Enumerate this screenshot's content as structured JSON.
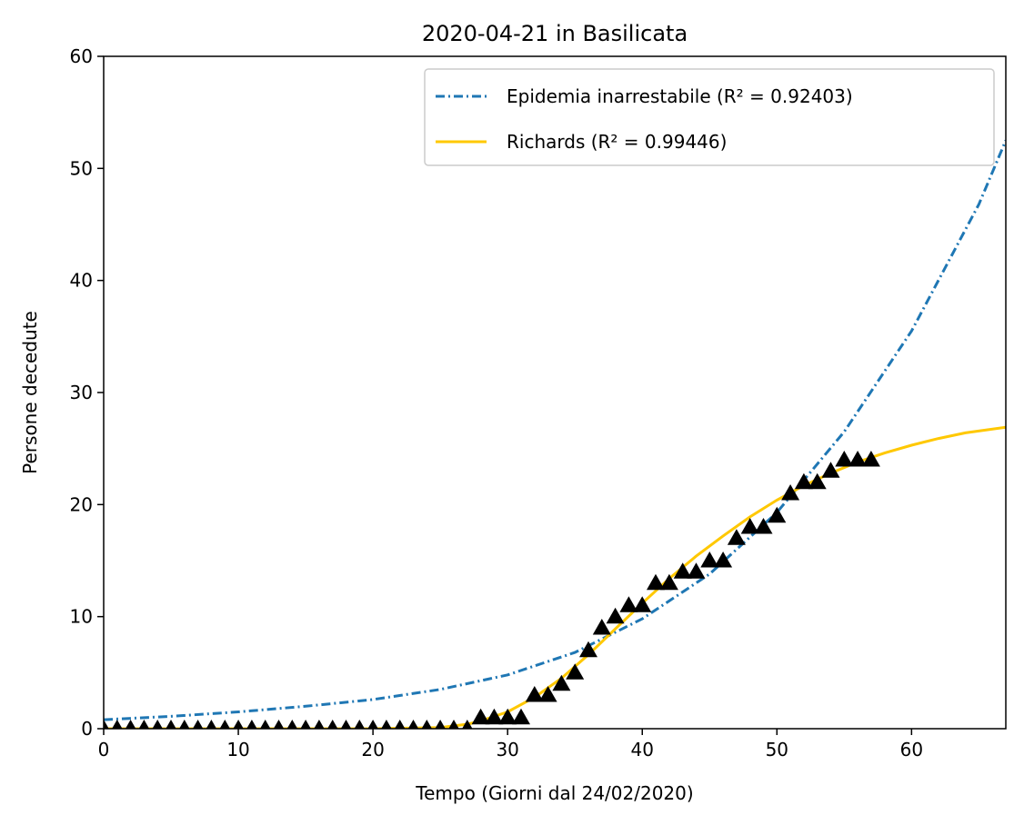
{
  "chart_data": {
    "type": "line",
    "title": "2020-04-21 in Basilicata",
    "xlabel": "Tempo (Giorni dal 24/02/2020)",
    "ylabel": "Persone decedute",
    "xlim": [
      0,
      67
    ],
    "ylim": [
      0,
      60
    ],
    "xticks": [
      0,
      10,
      20,
      30,
      40,
      50,
      60
    ],
    "yticks": [
      0,
      10,
      20,
      30,
      40,
      50,
      60
    ],
    "grid": false,
    "legend_position": "top-right",
    "observed": {
      "marker": "triangle",
      "color": "#000000",
      "x": [
        0,
        1,
        2,
        3,
        4,
        5,
        6,
        7,
        8,
        9,
        10,
        11,
        12,
        13,
        14,
        15,
        16,
        17,
        18,
        19,
        20,
        21,
        22,
        23,
        24,
        25,
        26,
        27,
        28,
        29,
        30,
        31,
        32,
        33,
        34,
        35,
        36,
        37,
        38,
        39,
        40,
        41,
        42,
        43,
        44,
        45,
        46,
        47,
        48,
        49,
        50,
        51,
        52,
        53,
        54,
        55,
        56,
        57
      ],
      "y": [
        0,
        0,
        0,
        0,
        0,
        0,
        0,
        0,
        0,
        0,
        0,
        0,
        0,
        0,
        0,
        0,
        0,
        0,
        0,
        0,
        0,
        0,
        0,
        0,
        0,
        0,
        0,
        0,
        1,
        1,
        1,
        1,
        3,
        3,
        4,
        5,
        7,
        9,
        10,
        11,
        11,
        13,
        13,
        14,
        14,
        15,
        15,
        17,
        18,
        18,
        19,
        21,
        22,
        22,
        23,
        24,
        24,
        24
      ]
    },
    "series": [
      {
        "name": "Epidemia inarrestabile",
        "r2_label": "R² = 0.92403",
        "color": "#1f77b4",
        "style": "dashdot",
        "x": [
          0,
          5,
          10,
          15,
          20,
          25,
          30,
          35,
          40,
          45,
          50,
          55,
          60,
          65,
          67
        ],
        "y": [
          0.8,
          1.1,
          1.5,
          2.0,
          2.6,
          3.5,
          4.8,
          6.8,
          9.8,
          13.8,
          19.3,
          26.5,
          35.5,
          46.8,
          52.5
        ]
      },
      {
        "name": "Richards",
        "r2_label": "R² = 0.99446",
        "color": "#ffc800",
        "style": "solid",
        "x": [
          0,
          10,
          20,
          25,
          27,
          28,
          30,
          32,
          34,
          36,
          38,
          40,
          42,
          44,
          46,
          48,
          50,
          52,
          54,
          56,
          58,
          60,
          62,
          64,
          67
        ],
        "y": [
          0,
          0,
          0,
          0.1,
          0.4,
          0.7,
          1.5,
          2.8,
          4.5,
          6.6,
          8.9,
          11.2,
          13.4,
          15.4,
          17.2,
          18.9,
          20.4,
          21.7,
          22.8,
          23.8,
          24.6,
          25.3,
          25.9,
          26.4,
          26.9
        ]
      }
    ]
  }
}
